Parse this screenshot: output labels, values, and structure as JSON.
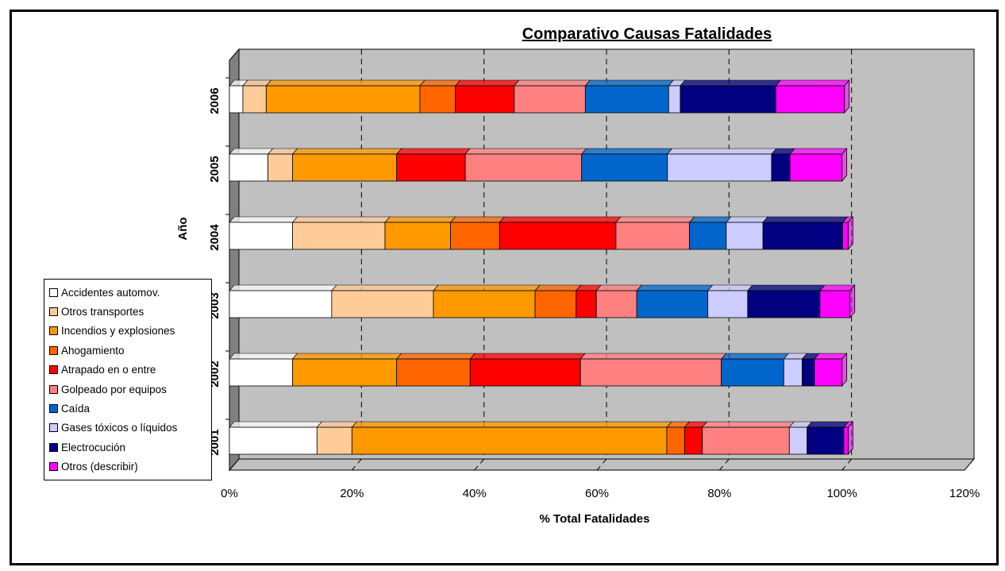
{
  "chart_data": {
    "type": "bar",
    "orientation": "horizontal",
    "stacked": "percent",
    "title": "Comparativo Causas Fatalidades",
    "xlabel": "% Total Fatalidades",
    "ylabel": "Año",
    "xlim": [
      0,
      120
    ],
    "xticks": [
      "0%",
      "20%",
      "40%",
      "60%",
      "80%",
      "100%",
      "120%"
    ],
    "grid": "vertical dashed",
    "legend_position": "left",
    "categories": [
      "2001",
      "2002",
      "2003",
      "2004",
      "2005",
      "2006"
    ],
    "series": [
      {
        "name": "Accidentes automov.",
        "color": "#FFFFFF",
        "values": [
          14.3,
          10.3,
          16.7,
          10.3,
          6.3,
          2.2
        ]
      },
      {
        "name": "Otros transportes",
        "color": "#FFCC99",
        "values": [
          5.7,
          0,
          16.6,
          15.1,
          4.0,
          3.8
        ]
      },
      {
        "name": "Incendios y explosiones",
        "color": "#FF9900",
        "values": [
          51.4,
          17.0,
          16.6,
          10.7,
          17.0,
          25.1
        ]
      },
      {
        "name": "Ahogamiento",
        "color": "#FF6600",
        "values": [
          2.9,
          12.0,
          6.7,
          8.0,
          0,
          5.8
        ]
      },
      {
        "name": "Atrapado en o entre",
        "color": "#FF0000",
        "values": [
          2.9,
          18.0,
          3.3,
          19.0,
          11.2,
          9.6
        ]
      },
      {
        "name": "Golpeado por equipos",
        "color": "#FF8080",
        "values": [
          14.2,
          23.0,
          6.6,
          12.0,
          19.0,
          11.6
        ]
      },
      {
        "name": "Caída",
        "color": "#0066CC",
        "values": [
          0,
          10.2,
          11.6,
          6.0,
          14.0,
          13.6
        ]
      },
      {
        "name": "Gases tóxicos o líquidos",
        "color": "#CCCCFF",
        "values": [
          2.9,
          3.0,
          6.5,
          6.0,
          17.0,
          1.9
        ]
      },
      {
        "name": "Electrocución",
        "color": "#000080",
        "values": [
          6.0,
          2.0,
          11.8,
          13.0,
          3.0,
          15.6
        ]
      },
      {
        "name": "Otros (describir)",
        "color": "#FF00FF",
        "values": [
          0.7,
          4.5,
          4.9,
          0.9,
          8.5,
          11.2
        ]
      }
    ]
  }
}
